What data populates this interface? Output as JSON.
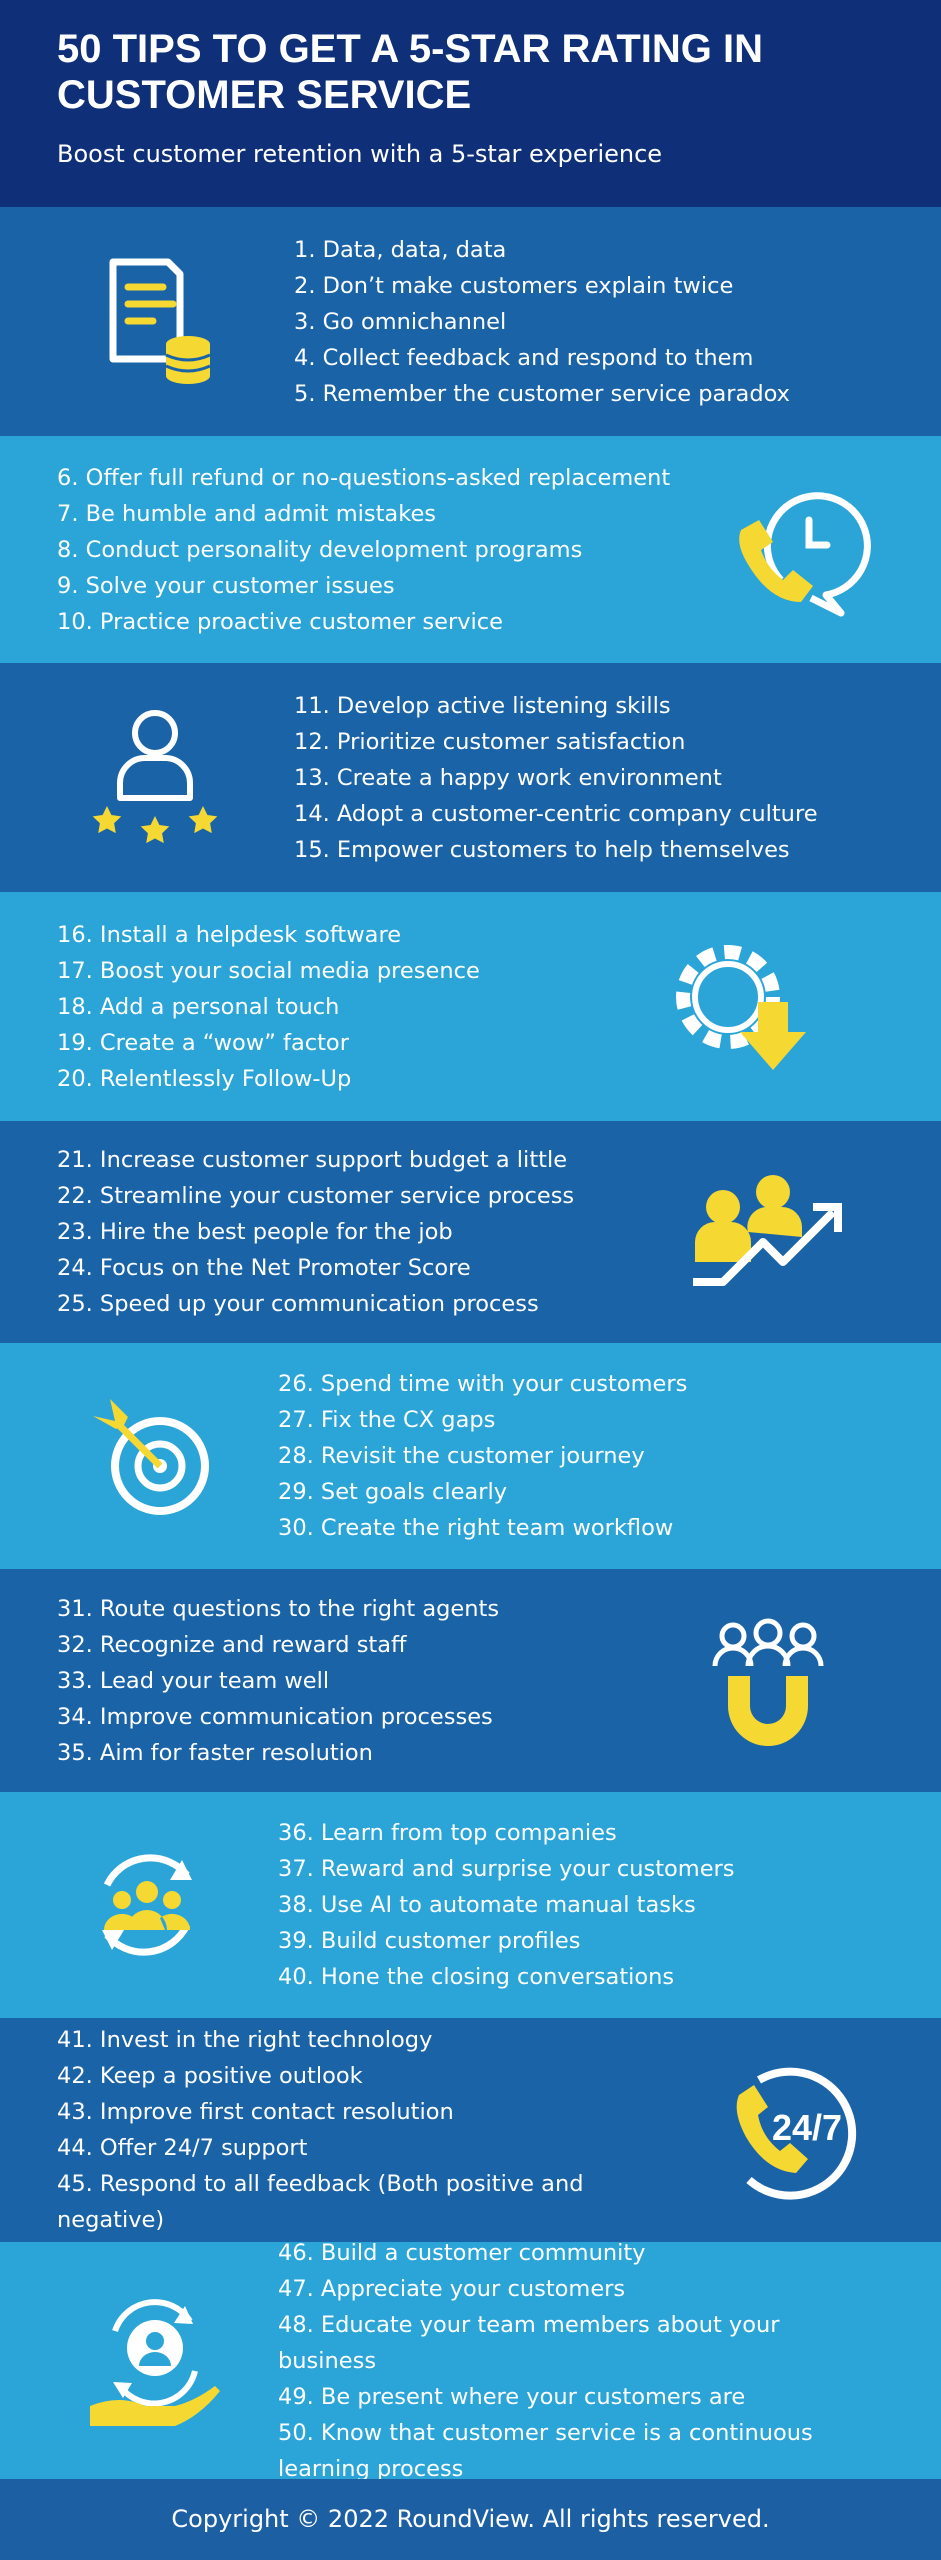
{
  "header": {
    "title": [
      "50 TIPS TO GET A 5-STAR RATING IN",
      "CUSTOMER SERVICE"
    ],
    "subtitle": "Boost customer retention with a 5-star experience"
  },
  "sections": [
    {
      "tips": [
        "1. Data, data, data",
        "2. Don’t make customers explain twice",
        "3. Go omnichannel",
        "4. Collect feedback and respond to them",
        "5. Remember the customer service paradox"
      ]
    },
    {
      "tips": [
        "6. Offer full refund or no-questions-asked replacement",
        "7. Be humble and admit mistakes",
        "8. Conduct personality development programs",
        "9. Solve your customer issues",
        "10. Practice proactive customer service"
      ]
    },
    {
      "tips": [
        "11. Develop active listening skills",
        "12. Prioritize customer satisfaction",
        "13. Create a happy work environment",
        "14. Adopt a customer-centric company culture",
        "15. Empower customers to help themselves"
      ]
    },
    {
      "tips": [
        "16. Install a helpdesk software",
        "17. Boost your social media presence",
        "18. Add a personal touch",
        "19. Create a “wow” factor",
        "20. Relentlessly Follow-Up"
      ]
    },
    {
      "tips": [
        "21. Increase customer support budget a little",
        "22. Streamline your customer service process",
        "23. Hire the best people for the job",
        "24. Focus on the Net Promoter Score",
        "25. Speed up your communication process"
      ]
    },
    {
      "tips": [
        "26. Spend time with your customers",
        "27. Fix the CX gaps",
        "28. Revisit the customer journey",
        "29. Set goals clearly",
        "30. Create the right team workflow"
      ]
    },
    {
      "tips": [
        "31. Route questions to the right agents",
        "32. Recognize and reward staff",
        "33. Lead your team well",
        "34. Improve communication processes",
        "35. Aim for faster resolution"
      ]
    },
    {
      "tips": [
        "36. Learn from top companies",
        "37. Reward and surprise your customers",
        "38. Use AI to automate manual tasks",
        "39. Build customer profiles",
        "40. Hone the closing conversations"
      ]
    },
    {
      "tips": [
        "41. Invest in the right technology",
        "42. Keep a positive outlook",
        "43. Improve first contact resolution",
        "44. Offer 24/7 support",
        "45. Respond to all feedback (Both positive and negative)"
      ],
      "icon_text": "24/7"
    },
    {
      "tips": [
        "46. Build a customer community",
        "47. Appreciate your customers",
        "48. Educate your team members about your business",
        "49. Be present where your customers are",
        "50. Know that customer service is a continuous learning process"
      ]
    }
  ],
  "footer": "Copyright © 2022 RoundView. All rights reserved."
}
